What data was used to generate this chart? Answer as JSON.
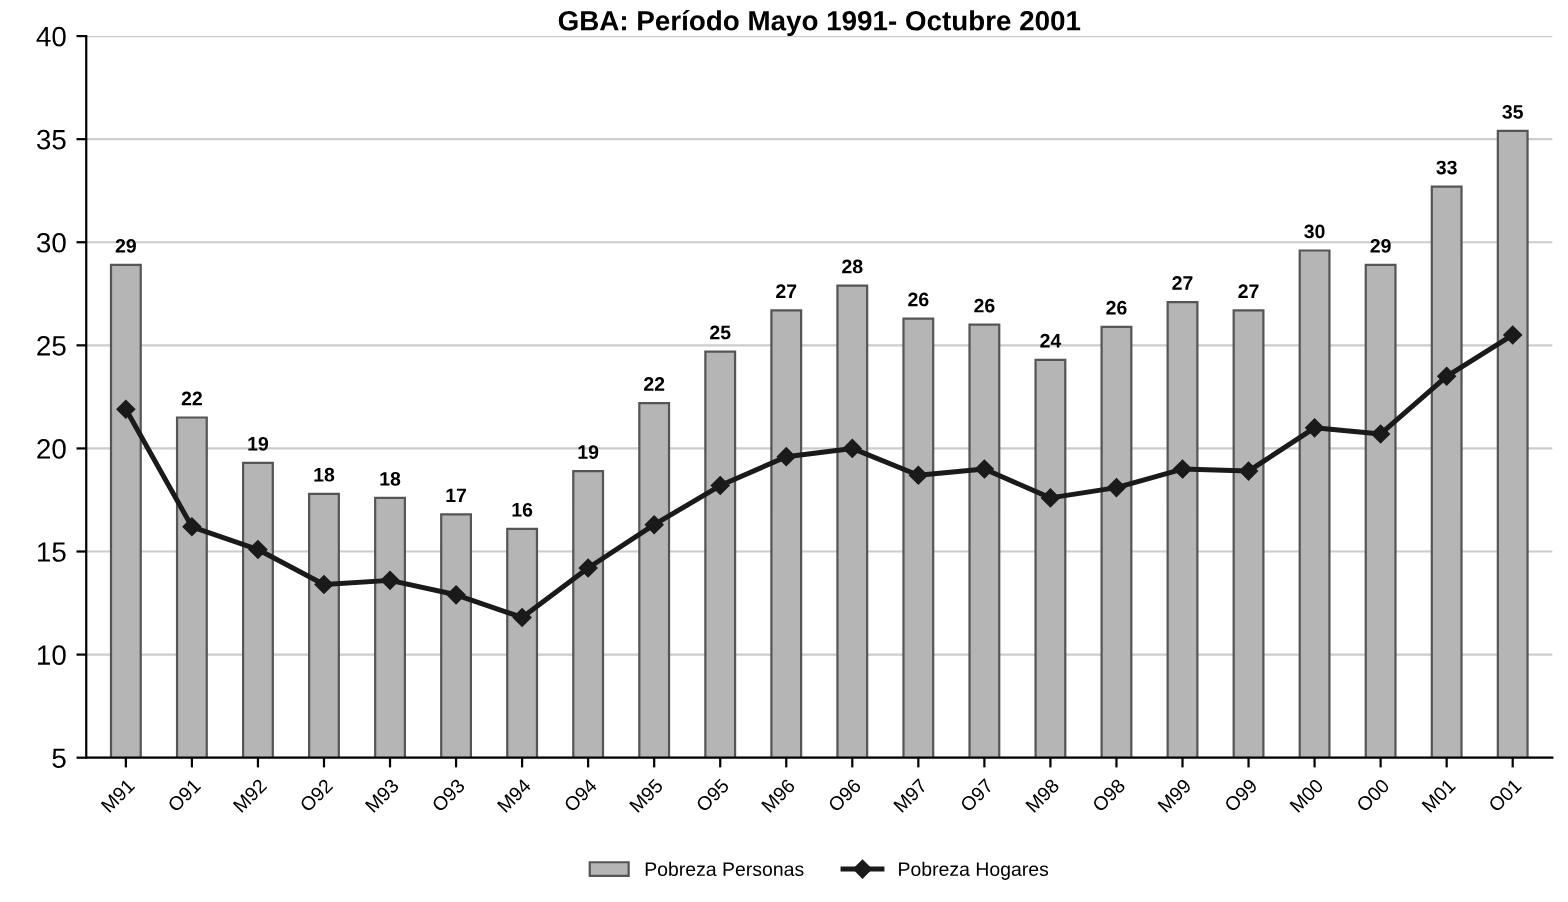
{
  "chart_data": {
    "type": "bar",
    "title": "GBA: Período Mayo 1991- Octubre 2001",
    "categories": [
      "M91",
      "O91",
      "M92",
      "O92",
      "M93",
      "O93",
      "M94",
      "O94",
      "M95",
      "O95",
      "M96",
      "O96",
      "M97",
      "O97",
      "M98",
      "O98",
      "M99",
      "O99",
      "M00",
      "O00",
      "M01",
      "O01"
    ],
    "series": [
      {
        "name": "Pobreza Personas",
        "color": "#b5b5b5",
        "values": [
          28.9,
          21.5,
          19.3,
          17.8,
          17.6,
          16.8,
          16.1,
          18.9,
          22.2,
          24.7,
          26.7,
          27.9,
          26.3,
          26.0,
          24.3,
          25.9,
          27.1,
          26.7,
          29.6,
          28.9,
          32.7,
          35.4
        ],
        "value_labels": [
          "29",
          "22",
          "19",
          "18",
          "18",
          "17",
          "16",
          "19",
          "22",
          "25",
          "27",
          "28",
          "26",
          "26",
          "24",
          "26",
          "27",
          "27",
          "30",
          "29",
          "33",
          "35"
        ]
      },
      {
        "name": "Pobreza Hogares",
        "type": "line",
        "color": "#1a1a1a",
        "marker": "diamond",
        "values": [
          21.9,
          16.2,
          15.1,
          13.4,
          13.6,
          12.9,
          11.8,
          14.2,
          16.3,
          18.2,
          19.6,
          20.0,
          18.7,
          19.0,
          17.6,
          18.1,
          19.0,
          18.9,
          21.0,
          20.7,
          23.5,
          25.5
        ]
      }
    ],
    "ylim": [
      5,
      40
    ],
    "yticks": [
      5,
      10,
      15,
      20,
      25,
      30,
      35,
      40
    ],
    "grid": "y",
    "legend": "bottom"
  }
}
